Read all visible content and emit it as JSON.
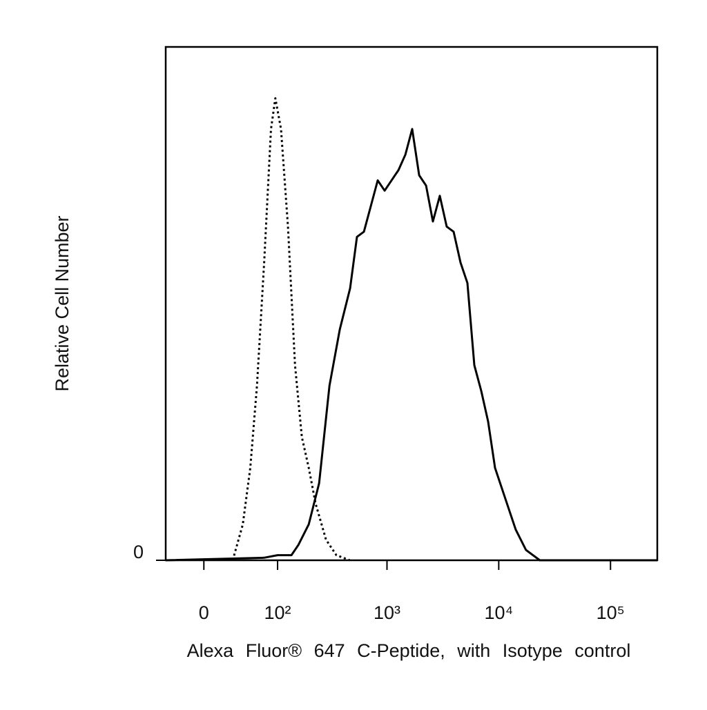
{
  "chart_data": {
    "type": "histogram",
    "x_label": "Alexa Fluor® 647 C-Peptide, with Isotype control",
    "y_label": "Relative Cell Number",
    "xscale": "arcsinh",
    "xlim": [
      -40,
      262144
    ],
    "ylim": [
      0,
      100
    ],
    "xticks": [
      0,
      {
        "value": 100,
        "label": "10²"
      },
      {
        "value": 1000,
        "label": "10³"
      },
      {
        "value": 10000,
        "label": "10⁴"
      },
      {
        "value": 100000,
        "label": "10⁵"
      }
    ],
    "yticks": [
      0
    ],
    "series": [
      {
        "color": "#000000",
        "line_style": "dotted",
        "x": [
          29,
          41,
          51,
          61,
          73,
          86,
          95,
          108,
          126,
          147,
          170,
          197,
          228,
          283,
          351,
          464
        ],
        "values": [
          0,
          7,
          18,
          34,
          58,
          84,
          90,
          84,
          65,
          38,
          24,
          18,
          11,
          4,
          1,
          0
        ]
      },
      {
        "color": "#000000",
        "line_style": "solid",
        "x": [
          -40,
          73,
          100,
          136,
          158,
          197,
          245,
          304,
          377,
          467,
          538,
          621,
          716,
          826,
          952,
          1098,
          1266,
          1459,
          1682,
          1940,
          2236,
          2577,
          2971,
          3424,
          3949,
          4553,
          5247,
          6049,
          6972,
          8038,
          9260,
          11460,
          14168,
          17530,
          23310,
          31000,
          262144
        ],
        "values": [
          0,
          0.5,
          1,
          1,
          3,
          7,
          15,
          34,
          45,
          53,
          63,
          64,
          69,
          74,
          72,
          74,
          76,
          79,
          84,
          75,
          73,
          66,
          71,
          65,
          64,
          58,
          54,
          38,
          33,
          27,
          18,
          12,
          6,
          2,
          0,
          0,
          0
        ]
      }
    ]
  }
}
